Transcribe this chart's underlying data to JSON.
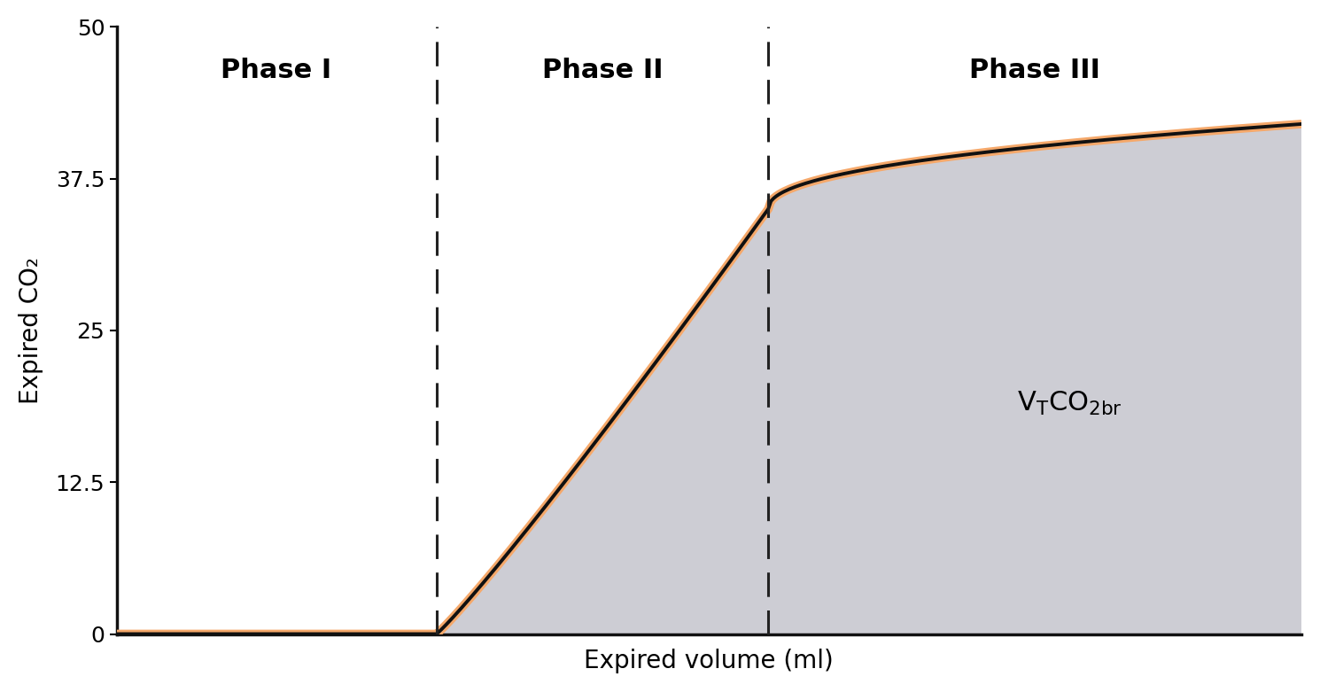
{
  "title": "",
  "xlabel": "Expired volume (ml)",
  "ylabel": "Expired CO₂",
  "ylim": [
    0,
    50
  ],
  "xlim": [
    0,
    100
  ],
  "yticks": [
    0,
    12.5,
    25,
    37.5,
    50
  ],
  "ytick_labels": [
    "0",
    "12.5",
    "25",
    "37.5",
    "50"
  ],
  "phase1_x_end": 27,
  "phase2_x_end": 55,
  "phase3_x_end": 100,
  "phase2_y_end": 35.0,
  "phase3_y_end": 42.0,
  "orange_line_color": "#F5A86A",
  "black_line_color": "#111111",
  "fill_color": "#CDCDD4",
  "fill_alpha": 1.0,
  "background_color": "#FFFFFF",
  "dashed_line_color": "#222222",
  "phase_label_fontsize": 22,
  "axis_label_fontsize": 20,
  "tick_fontsize": 18,
  "annotation_fontsize": 22,
  "spine_color": "#111111",
  "phase1_label": "Phase I",
  "phase2_label": "Phase II",
  "phase3_label": "Phase III"
}
